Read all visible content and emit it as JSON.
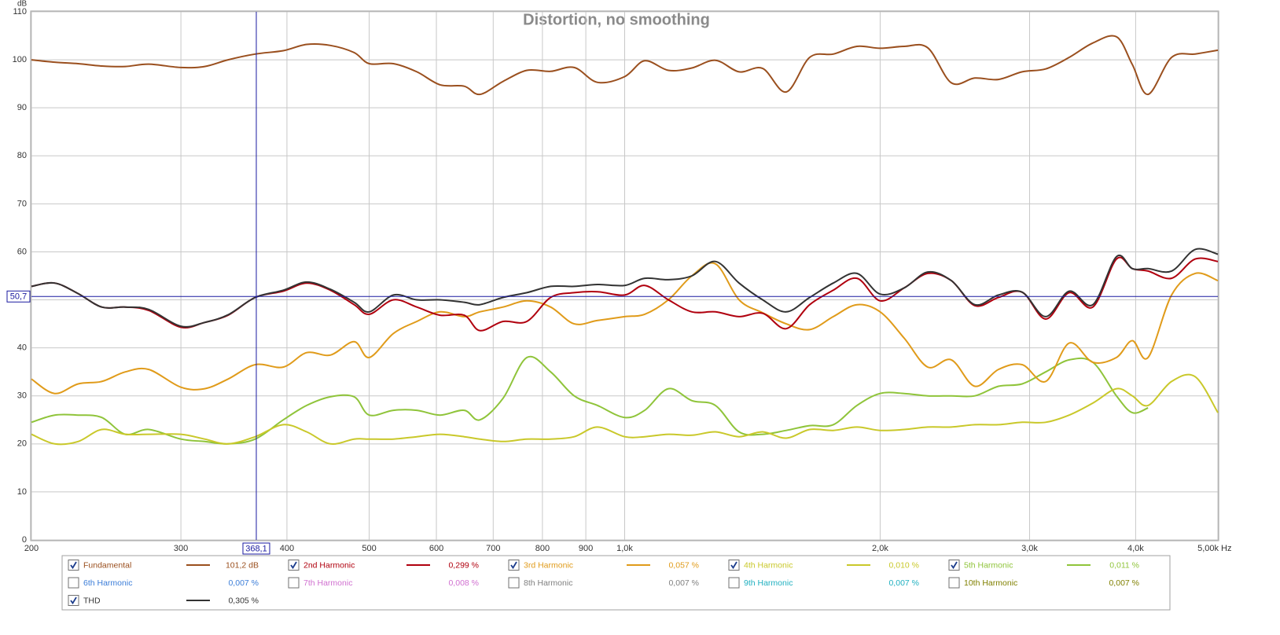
{
  "chart_data": {
    "type": "line",
    "title": "Distortion, no smoothing",
    "y_label": "dB",
    "x_label": "Hz",
    "log_x": true,
    "grid": true,
    "xlim": [
      200,
      5000
    ],
    "ylim": [
      0,
      110
    ],
    "xticks": [
      200,
      300,
      400,
      500,
      600,
      700,
      800,
      900,
      {
        "value": 1000,
        "label": "1,0k"
      },
      {
        "value": 2000,
        "label": "2,0k"
      },
      {
        "value": 3000,
        "label": "3,0k"
      },
      {
        "value": 4000,
        "label": "4,0k"
      },
      {
        "value": 5000,
        "label": "5,00k"
      }
    ],
    "yticks": [
      0,
      10,
      20,
      30,
      40,
      50,
      60,
      70,
      80,
      90,
      100,
      110
    ],
    "cursor": {
      "x": {
        "value": 368.1,
        "label": "368,1"
      },
      "y": {
        "value": 50.7,
        "label": "50,7"
      },
      "color": "#1a1aa0"
    },
    "x": [
      200,
      213,
      227,
      242,
      258,
      275,
      300,
      320,
      341,
      367,
      396,
      422,
      450,
      480,
      500,
      534,
      569,
      606,
      647,
      675,
      719,
      767,
      818,
      872,
      929,
      1000,
      1056,
      1126,
      1200,
      1279,
      1364,
      1454,
      1550,
      1652,
      1761,
      1878,
      2000,
      2135,
      2276,
      2426,
      2586,
      2757,
      2940,
      3134,
      3340,
      3562,
      3797,
      3964,
      4137,
      4410,
      4701,
      5000
    ],
    "series": [
      {
        "name": "Fundamental",
        "color": "#9a4f1e",
        "checked": true,
        "reading": "101,2 dB",
        "values": [
          100,
          99.5,
          99.2,
          98.7,
          98.6,
          99.1,
          98.4,
          98.6,
          100,
          101.2,
          101.9,
          103.2,
          103,
          101.5,
          99.2,
          99.2,
          97.5,
          94.8,
          94.5,
          92.8,
          95.5,
          97.8,
          97.6,
          98.4,
          95.3,
          96.5,
          99.8,
          97.8,
          98.3,
          99.9,
          97.5,
          98.2,
          93.3,
          100.5,
          101.2,
          102.8,
          102.4,
          102.8,
          102.5,
          95.2,
          96.2,
          95.9,
          97.5,
          98.1,
          100.5,
          103.5,
          104.8,
          99,
          92.8,
          100.5,
          101.2,
          102
        ]
      },
      {
        "name": "2nd Harmonic",
        "color": "#b0000e",
        "checked": true,
        "reading": "0,299 %",
        "values": [
          52.8,
          53.5,
          51.3,
          48.5,
          48.5,
          47.8,
          44.3,
          45.3,
          46.8,
          50.5,
          51.8,
          53.5,
          52,
          49,
          47,
          50,
          48.5,
          46.8,
          46.8,
          43.6,
          45.5,
          45.5,
          50.5,
          51.5,
          51.7,
          51,
          53,
          50,
          47.5,
          47.5,
          46.5,
          47.2,
          44,
          49,
          52,
          54.5,
          49.8,
          52.5,
          55.5,
          54,
          48.8,
          50.5,
          51.6,
          46,
          51.5,
          48.5,
          58.5,
          56.5,
          56,
          54.5,
          58.5,
          58
        ]
      },
      {
        "name": "3rd Harmonic",
        "color": "#e09b1a",
        "checked": true,
        "reading": "0,057 %",
        "values": [
          33.5,
          30.5,
          32.5,
          33,
          35,
          35.5,
          31.8,
          31.5,
          33.5,
          36.5,
          36,
          39,
          38.5,
          41.3,
          38,
          43,
          45.5,
          47.5,
          46.5,
          47.5,
          48.5,
          49.8,
          48.5,
          45,
          45.7,
          46.5,
          47,
          50,
          55,
          57.5,
          50,
          47.3,
          45,
          43.8,
          46.5,
          49,
          47.5,
          42,
          36,
          37.5,
          32,
          35.5,
          36.5,
          33,
          41,
          37,
          38,
          41.5,
          38,
          51,
          55.5,
          54
        ]
      },
      {
        "name": "4th Harmonic",
        "color": "#c9c82a",
        "checked": true,
        "reading": "0,010 %",
        "values": [
          22,
          20,
          20.5,
          23,
          22,
          22,
          22,
          21,
          20,
          21.5,
          24,
          22.5,
          20,
          21,
          21,
          21,
          21.5,
          22,
          21.5,
          21,
          20.5,
          21,
          21,
          21.5,
          23.5,
          21.5,
          21.5,
          22,
          21.8,
          22.5,
          21.5,
          22.5,
          21.2,
          23,
          22.8,
          23.5,
          22.8,
          23,
          23.5,
          23.5,
          24,
          24,
          24.5,
          24.5,
          26,
          28.5,
          31.5,
          30,
          28,
          33,
          34,
          26.5
        ]
      },
      {
        "name": "5th Harmonic",
        "color": "#8fc43a",
        "checked": true,
        "reading": "0,011 %",
        "values": [
          24.5,
          26,
          26,
          25.5,
          22,
          23,
          21,
          20.5,
          20,
          21,
          25,
          28,
          29.8,
          29.8,
          26,
          27,
          27,
          26,
          27,
          25,
          29.5,
          38,
          35,
          30,
          28,
          25.5,
          27,
          31.5,
          29,
          28,
          22.5,
          22,
          22.8,
          23.8,
          24,
          28,
          30.5,
          30.5,
          30,
          30,
          30,
          32,
          32.5,
          35,
          37.5,
          37,
          30,
          26.5,
          27.5,
          null,
          null,
          null
        ]
      },
      {
        "name": "6th Harmonic",
        "color": "#3b7dd8",
        "checked": false,
        "reading": "0,007 %"
      },
      {
        "name": "7th Harmonic",
        "color": "#d070d0",
        "checked": false,
        "reading": "0,008 %"
      },
      {
        "name": "8th Harmonic",
        "color": "#808080",
        "checked": false,
        "reading": "0,007 %"
      },
      {
        "name": "9th Harmonic",
        "color": "#20b0c0",
        "checked": false,
        "reading": "0,007 %"
      },
      {
        "name": "10th Harmonic",
        "color": "#808000",
        "checked": false,
        "reading": "0,007 %"
      },
      {
        "name": "THD",
        "color": "#333333",
        "checked": true,
        "reading": "0,305 %",
        "values": [
          52.8,
          53.5,
          51.3,
          48.5,
          48.5,
          48,
          44.5,
          45.3,
          46.9,
          50.5,
          52,
          53.7,
          52.2,
          49.5,
          47.5,
          51,
          50,
          50,
          49.5,
          49,
          50.5,
          51.5,
          52.8,
          52.8,
          53.2,
          53,
          54.5,
          54.2,
          55,
          58,
          53.5,
          50,
          47.5,
          50.5,
          53.5,
          55.5,
          51.2,
          52.5,
          55.8,
          54,
          49,
          51,
          51.6,
          46.5,
          51.8,
          49,
          59,
          56.5,
          56.5,
          56,
          60.5,
          59.5
        ]
      }
    ]
  }
}
